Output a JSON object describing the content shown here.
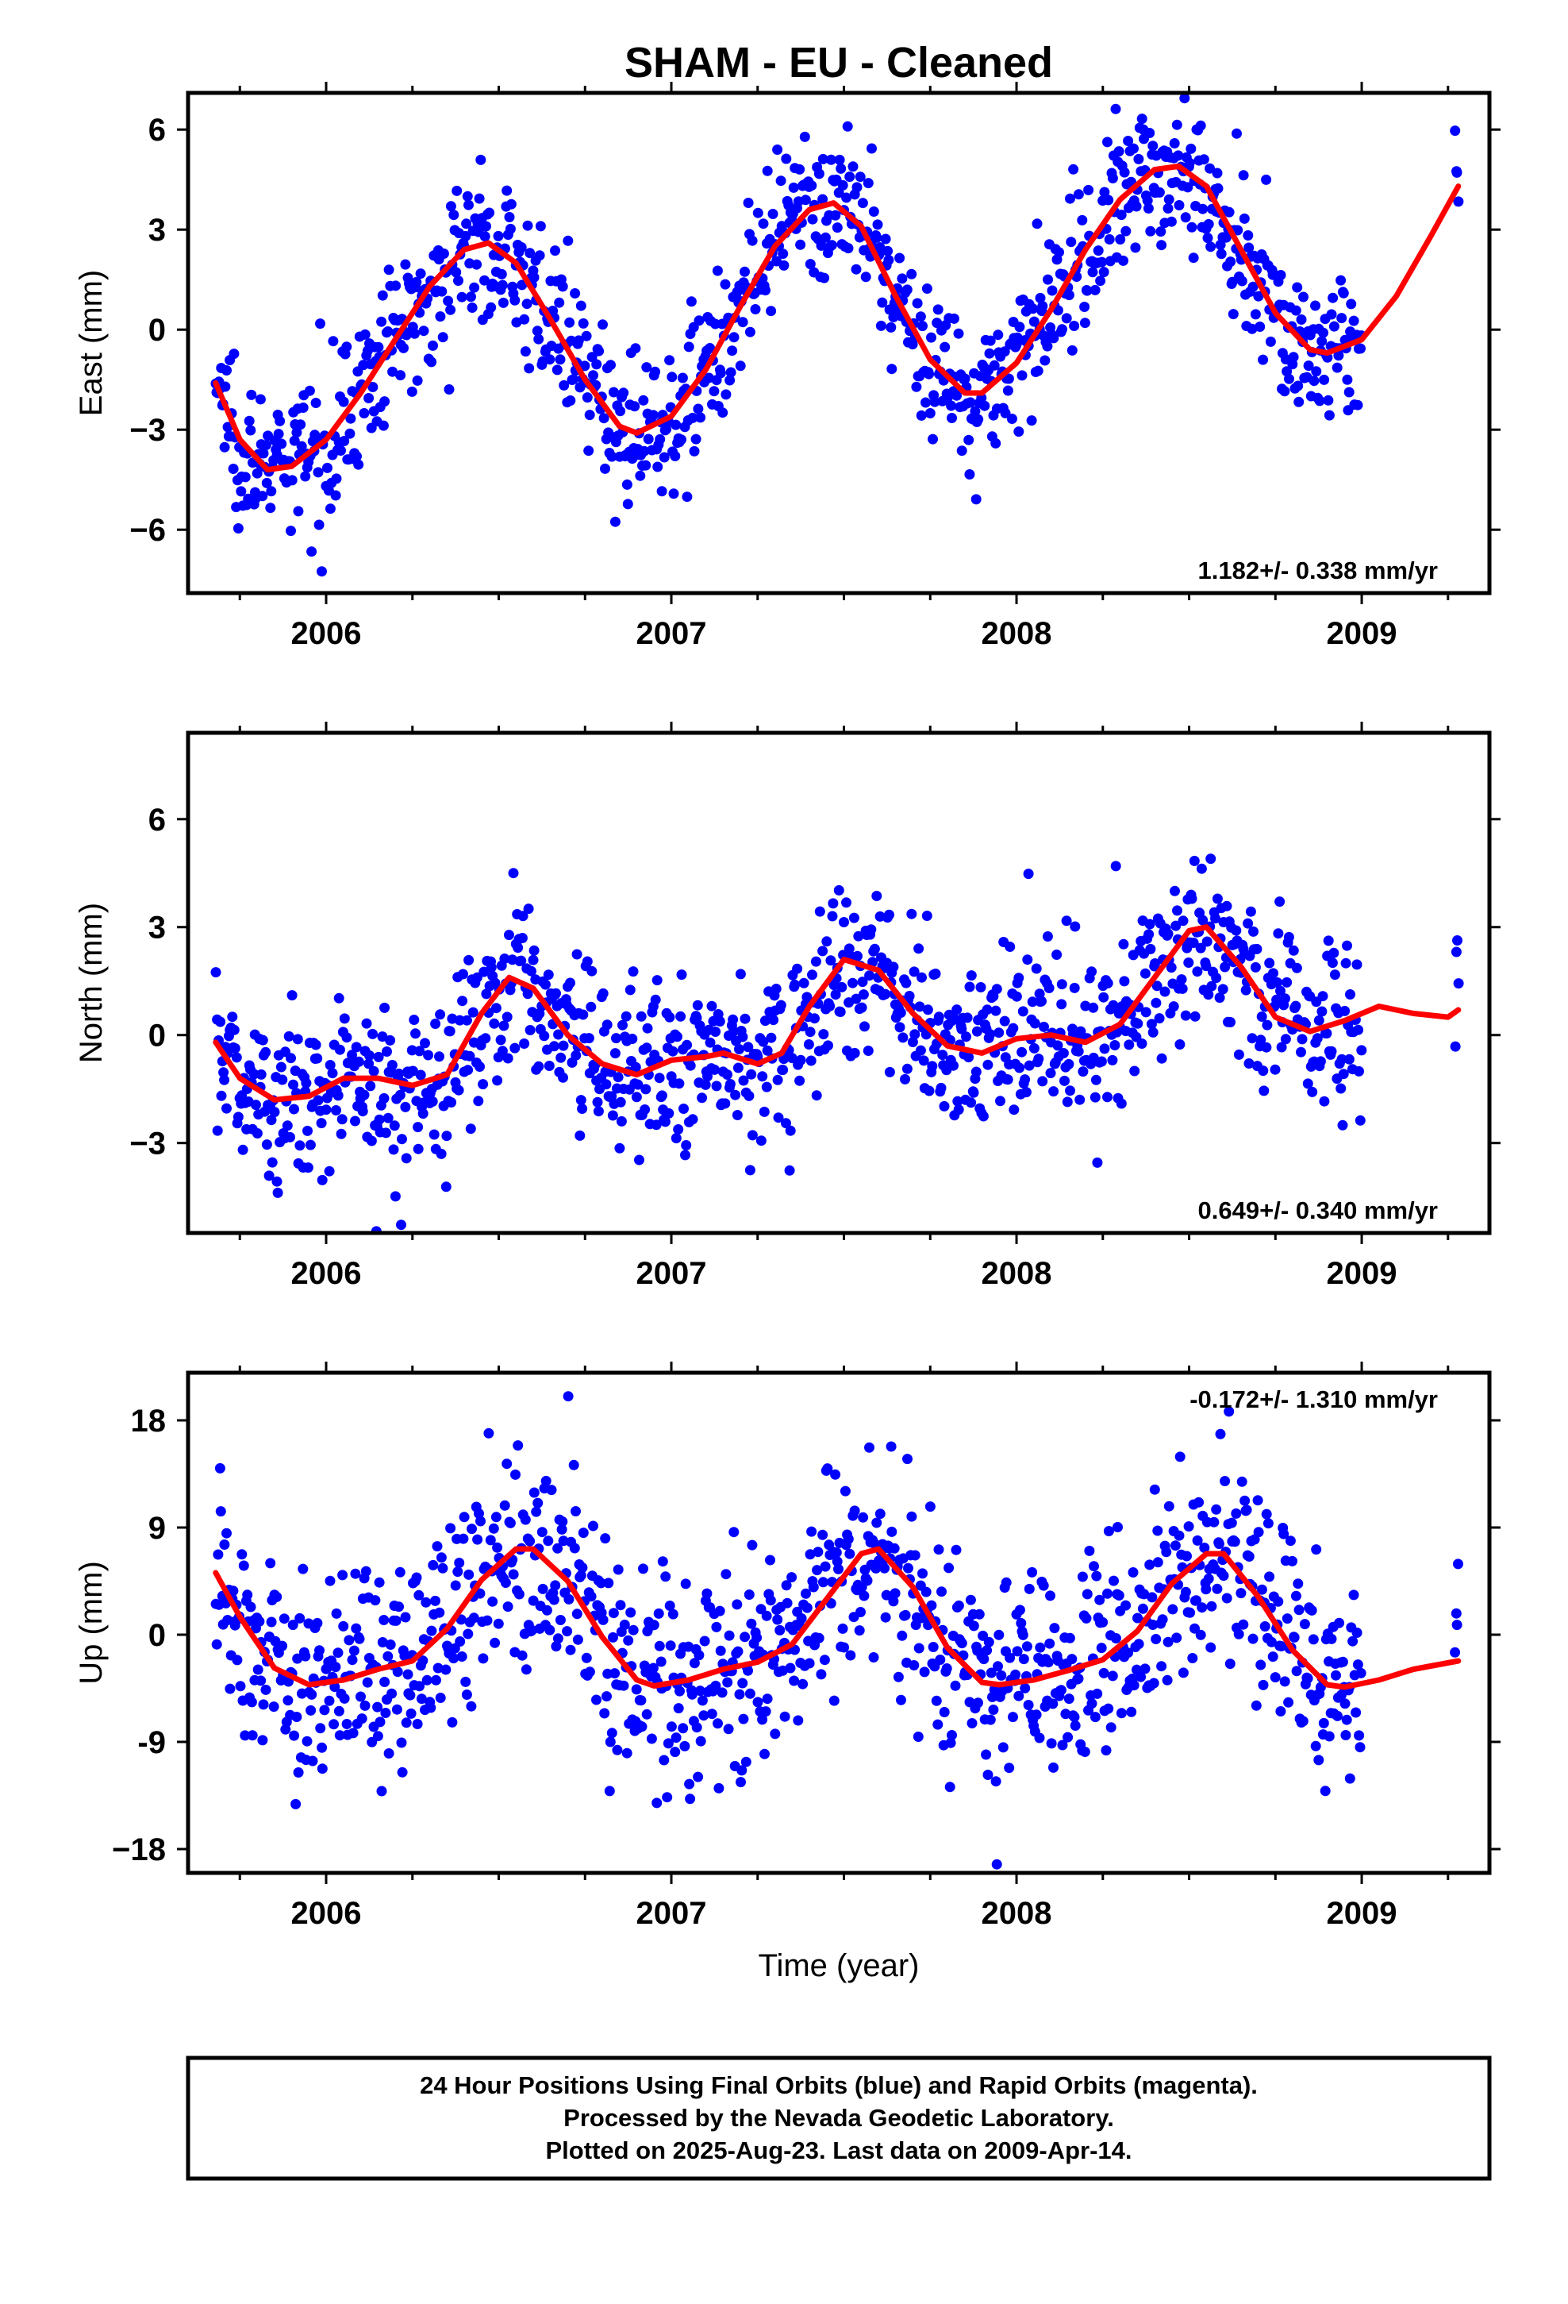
{
  "title": "SHAM  - EU - Cleaned",
  "colors": {
    "data": "#0000ff",
    "fit": "#ff0000",
    "frame": "#000000"
  },
  "xlabel": "Time (year)",
  "footer": {
    "line1": "24 Hour Positions Using Final Orbits (blue) and Rapid Orbits (magenta).",
    "line2": "Processed by the Nevada Geodetic Laboratory.",
    "line3": "Plotted on 2025-Aug-23. Last data on 2009-Apr-14."
  },
  "chart_data": [
    {
      "type": "scatter",
      "component": "east",
      "ylabel": "East (mm)",
      "rate_text": "1.182+/- 0.338 mm/yr",
      "rate_position": "bottom-right",
      "xlim": [
        2005.6,
        2009.37
      ],
      "ylim": [
        -7.9,
        7.1
      ],
      "xticks": [
        "2006",
        "2007",
        "2008",
        "2009"
      ],
      "yticks": [
        "6",
        "3",
        "0",
        "−3",
        "−6"
      ],
      "ytick_values": [
        6,
        3,
        0,
        -3,
        -6
      ],
      "grid": false,
      "data_span": [
        2005.68,
        2009.28
      ],
      "gap_span": [
        2009.0,
        2009.27
      ],
      "approx_points": 1140,
      "observed_scatter_mm": 1.1,
      "fit_series": {
        "name": "",
        "x": [
          2005.68,
          2005.75,
          2005.83,
          2005.9,
          2006.0,
          2006.1,
          2006.2,
          2006.3,
          2006.4,
          2006.47,
          2006.55,
          2006.65,
          2006.75,
          2006.85,
          2006.9,
          2007.0,
          2007.1,
          2007.2,
          2007.3,
          2007.4,
          2007.47,
          2007.55,
          2007.65,
          2007.75,
          2007.85,
          2007.9,
          2008.0,
          2008.1,
          2008.2,
          2008.3,
          2008.4,
          2008.47,
          2008.55,
          2008.65,
          2008.75,
          2008.85,
          2008.9,
          2009.0,
          2009.1,
          2009.2,
          2009.28
        ],
        "y": [
          -1.6,
          -3.3,
          -4.2,
          -4.1,
          -3.3,
          -1.9,
          -0.3,
          1.3,
          2.4,
          2.6,
          2.0,
          0.3,
          -1.5,
          -2.9,
          -3.1,
          -2.6,
          -1.2,
          0.7,
          2.5,
          3.6,
          3.8,
          3.1,
          1.0,
          -0.9,
          -1.9,
          -1.9,
          -1.0,
          0.6,
          2.4,
          3.9,
          4.8,
          4.9,
          4.3,
          2.4,
          0.5,
          -0.6,
          -0.7,
          -0.3,
          1.0,
          2.8,
          4.3
        ]
      }
    },
    {
      "type": "scatter",
      "component": "north",
      "ylabel": "North (mm)",
      "rate_text": "0.649+/- 0.340 mm/yr",
      "rate_position": "bottom-right",
      "xlim": [
        2005.6,
        2009.37
      ],
      "ylim": [
        -5.5,
        8.4
      ],
      "xticks": [
        "2006",
        "2007",
        "2008",
        "2009"
      ],
      "yticks": [
        "6",
        "3",
        "0",
        "−3"
      ],
      "ytick_values": [
        6,
        3,
        0,
        -3
      ],
      "grid": false,
      "data_span": [
        2005.68,
        2009.28
      ],
      "gap_span": [
        2009.0,
        2009.27
      ],
      "approx_points": 1140,
      "observed_scatter_mm": 1.2,
      "fit_series": {
        "name": "",
        "x": [
          2005.68,
          2005.75,
          2005.85,
          2005.95,
          2006.05,
          2006.15,
          2006.25,
          2006.35,
          2006.45,
          2006.53,
          2006.6,
          2006.7,
          2006.8,
          2006.9,
          2007.0,
          2007.1,
          2007.15,
          2007.25,
          2007.32,
          2007.4,
          2007.5,
          2007.6,
          2007.7,
          2007.8,
          2007.9,
          2008.0,
          2008.1,
          2008.2,
          2008.3,
          2008.4,
          2008.5,
          2008.55,
          2008.65,
          2008.75,
          2008.85,
          2008.95,
          2009.05,
          2009.15,
          2009.25,
          2009.28
        ],
        "y": [
          -0.2,
          -1.2,
          -1.8,
          -1.7,
          -1.2,
          -1.2,
          -1.4,
          -1.1,
          0.6,
          1.6,
          1.3,
          0.0,
          -0.8,
          -1.1,
          -0.7,
          -0.6,
          -0.5,
          -0.8,
          -0.5,
          0.8,
          2.1,
          1.8,
          0.6,
          -0.3,
          -0.5,
          -0.1,
          0.0,
          -0.2,
          0.3,
          1.6,
          2.9,
          3.0,
          1.9,
          0.5,
          0.1,
          0.4,
          0.8,
          0.6,
          0.5,
          0.7
        ]
      }
    },
    {
      "type": "scatter",
      "component": "up",
      "ylabel": "Up (mm)",
      "rate_text": "-0.172+/- 1.310 mm/yr",
      "rate_position": "top-right",
      "xlim": [
        2005.6,
        2009.37
      ],
      "ylim": [
        -20,
        22
      ],
      "xticks": [
        "2006",
        "2007",
        "2008",
        "2009"
      ],
      "yticks": [
        "18",
        "9",
        "0",
        "-9",
        "−18"
      ],
      "ytick_values": [
        18,
        9,
        0,
        -9,
        -18
      ],
      "grid": false,
      "data_span": [
        2005.68,
        2009.28
      ],
      "gap_span": [
        2009.0,
        2009.27
      ],
      "approx_points": 1140,
      "observed_scatter_mm": 4.5,
      "fit_series": {
        "name": "",
        "x": [
          2005.68,
          2005.75,
          2005.85,
          2005.95,
          2006.05,
          2006.15,
          2006.25,
          2006.35,
          2006.45,
          2006.55,
          2006.6,
          2006.7,
          2006.8,
          2006.9,
          2006.95,
          2007.05,
          2007.15,
          2007.25,
          2007.35,
          2007.45,
          2007.55,
          2007.6,
          2007.7,
          2007.8,
          2007.9,
          2007.95,
          2008.05,
          2008.15,
          2008.25,
          2008.35,
          2008.45,
          2008.55,
          2008.6,
          2008.7,
          2008.8,
          2008.9,
          2008.95,
          2009.05,
          2009.15,
          2009.28
        ],
        "y": [
          5.2,
          1.5,
          -2.8,
          -4.2,
          -3.8,
          -2.9,
          -2.2,
          0.5,
          4.6,
          7.2,
          7.2,
          4.5,
          -0.2,
          -3.8,
          -4.3,
          -3.8,
          -2.9,
          -2.3,
          -0.8,
          3.0,
          6.8,
          7.2,
          4.0,
          -1.1,
          -4.0,
          -4.2,
          -3.8,
          -3.0,
          -2.1,
          0.3,
          4.3,
          6.8,
          6.8,
          3.2,
          -1.3,
          -4.2,
          -4.4,
          -3.8,
          -2.9,
          -2.2
        ]
      }
    }
  ]
}
